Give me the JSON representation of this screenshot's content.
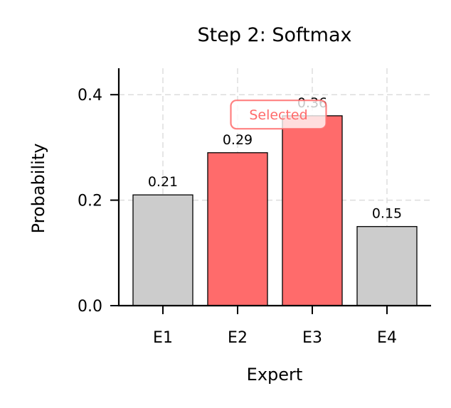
{
  "chart_data": {
    "type": "bar",
    "title": "Step 2: Softmax",
    "xlabel": "Expert",
    "ylabel": "Probability",
    "categories": [
      "E1",
      "E2",
      "E3",
      "E4"
    ],
    "values": [
      0.21,
      0.29,
      0.36,
      0.15
    ],
    "value_labels": [
      "0.21",
      "0.29",
      "0.36",
      "0.15"
    ],
    "selected": [
      false,
      true,
      true,
      false
    ],
    "ylim": [
      0,
      0.45
    ],
    "yticks": [
      0.0,
      0.2,
      0.4
    ],
    "ytick_labels": [
      "0.0",
      "0.2",
      "0.4"
    ],
    "grid": true,
    "legend": null,
    "annotations": [
      {
        "text": "Selected",
        "x_between": [
          "E2",
          "E3"
        ],
        "y": 0.365
      }
    ],
    "colors": {
      "selected": "#ff6b6b",
      "unselected": "#cccccc",
      "edge": "#000000",
      "annotation": "#ff6b6b",
      "grid": "#dddddd"
    }
  }
}
